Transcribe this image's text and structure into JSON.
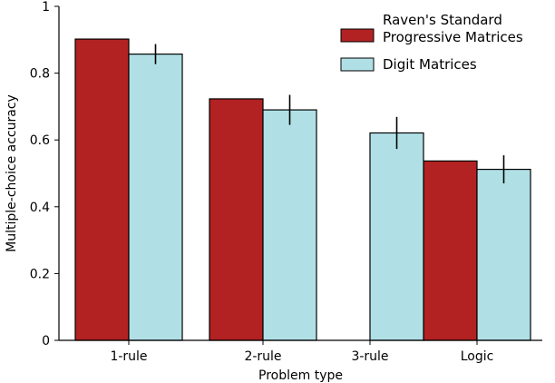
{
  "chart_data": {
    "type": "bar",
    "title": "",
    "xlabel": "Problem type",
    "ylabel": "Multiple-choice accuracy",
    "categories": [
      "1-rule",
      "2-rule",
      "3-rule",
      "Logic"
    ],
    "ylim": [
      0,
      1
    ],
    "yticks": [
      0,
      0.2,
      0.4,
      0.6,
      0.8,
      1
    ],
    "ytick_labels": [
      "0",
      "0.2",
      "0.4",
      "0.6",
      "0.8",
      "1"
    ],
    "grid": false,
    "legend_position": "top-right",
    "series": [
      {
        "name": "Raven's Standard Progressive Matrices",
        "name_lines": [
          "Raven's Standard",
          "Progressive Matrices"
        ],
        "color": "#b22222",
        "values": [
          0.902,
          0.723,
          null,
          0.537
        ],
        "error": [
          null,
          null,
          null,
          null
        ]
      },
      {
        "name": "Digit Matrices",
        "name_lines": [
          "Digit Matrices"
        ],
        "color": "#b0e0e6",
        "values": [
          0.857,
          0.69,
          0.621,
          0.512
        ],
        "error": [
          0.03,
          0.045,
          0.048,
          0.042
        ]
      }
    ]
  }
}
